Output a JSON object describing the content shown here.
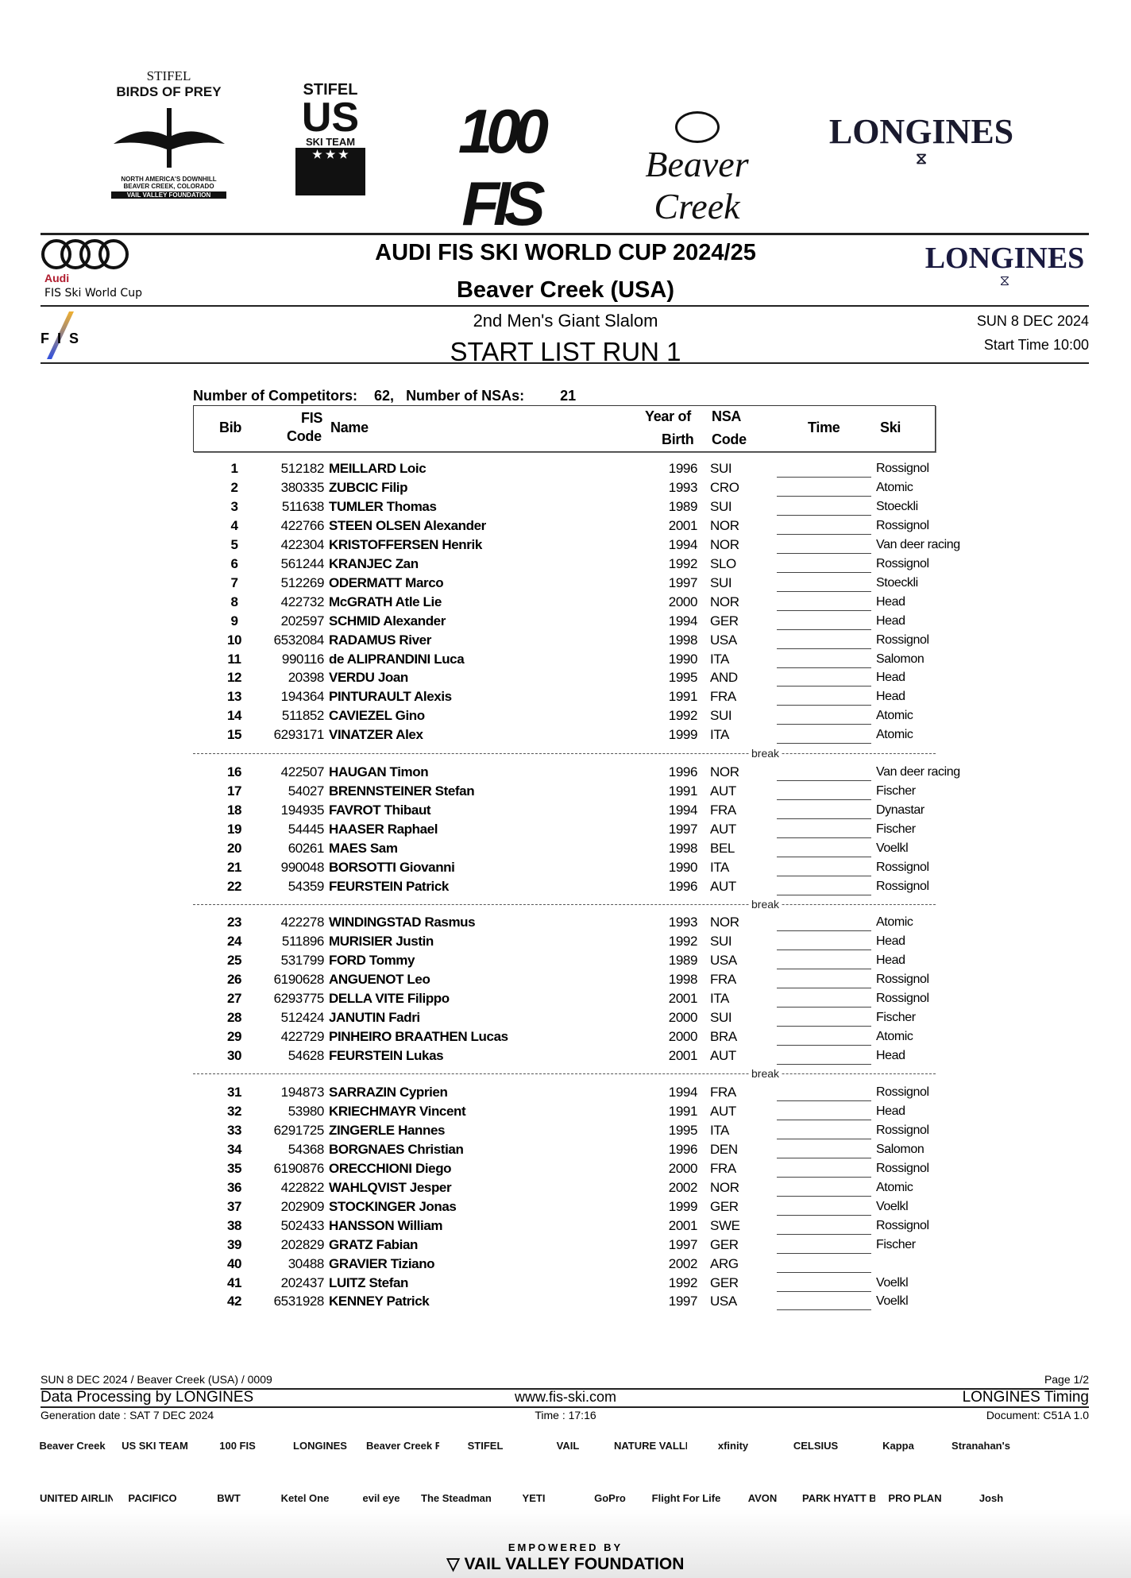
{
  "top_logos": {
    "birds_of_prey": {
      "line1": "STIFEL",
      "line2": "BIRDS OF PREY",
      "line3": "NORTH AMERICA'S DOWNHILL",
      "line4": "BEAVER CREEK, COLORADO",
      "line5": "VAIL VALLEY FOUNDATION"
    },
    "us_ski_team": {
      "line1": "STIFEL",
      "line2": "US",
      "line3": "SKI TEAM"
    },
    "fis_100": {
      "text": "100 FIS"
    },
    "beaver_creek": {
      "text": "Beaver Creek"
    },
    "longines": {
      "text": "LONGINES"
    }
  },
  "header": {
    "audi_brand": "Audi",
    "audi_sub": "FIS Ski World Cup",
    "title": "AUDI FIS SKI WORLD CUP 2024/25",
    "venue": "Beaver Creek (USA)",
    "longines_logo": "LONGINES",
    "fis_logo": "FIS",
    "event": "2nd Men's Giant Slalom",
    "list_title": "START LIST RUN 1",
    "date": "SUN 8 DEC 2024",
    "start_time": "Start Time 10:00"
  },
  "summary": {
    "competitors_label": "Number of Competitors:",
    "competitors_value": "62,",
    "nsas_label": "Number of NSAs:",
    "nsas_value": "21"
  },
  "table": {
    "headers": {
      "bib": "Bib",
      "fis1": "FIS",
      "fis2": "Code",
      "name": "Name",
      "yob1": "Year of",
      "yob2": "Birth",
      "nsa1": "NSA",
      "nsa2": "Code",
      "time": "Time",
      "ski": "Ski"
    },
    "break_label": "break",
    "groups": [
      [
        {
          "bib": "1",
          "fis": "512182",
          "name": "MEILLARD Loic",
          "yob": "1996",
          "nsa": "SUI",
          "ski": "Rossignol"
        },
        {
          "bib": "2",
          "fis": "380335",
          "name": "ZUBCIC Filip",
          "yob": "1993",
          "nsa": "CRO",
          "ski": "Atomic"
        },
        {
          "bib": "3",
          "fis": "511638",
          "name": "TUMLER Thomas",
          "yob": "1989",
          "nsa": "SUI",
          "ski": "Stoeckli"
        },
        {
          "bib": "4",
          "fis": "422766",
          "name": "STEEN OLSEN Alexander",
          "yob": "2001",
          "nsa": "NOR",
          "ski": "Rossignol"
        },
        {
          "bib": "5",
          "fis": "422304",
          "name": "KRISTOFFERSEN Henrik",
          "yob": "1994",
          "nsa": "NOR",
          "ski": "Van deer racing"
        },
        {
          "bib": "6",
          "fis": "561244",
          "name": "KRANJEC Zan",
          "yob": "1992",
          "nsa": "SLO",
          "ski": "Rossignol"
        },
        {
          "bib": "7",
          "fis": "512269",
          "name": "ODERMATT Marco",
          "yob": "1997",
          "nsa": "SUI",
          "ski": "Stoeckli"
        },
        {
          "bib": "8",
          "fis": "422732",
          "name": "McGRATH Atle Lie",
          "yob": "2000",
          "nsa": "NOR",
          "ski": "Head"
        },
        {
          "bib": "9",
          "fis": "202597",
          "name": "SCHMID Alexander",
          "yob": "1994",
          "nsa": "GER",
          "ski": "Head"
        },
        {
          "bib": "10",
          "fis": "6532084",
          "name": "RADAMUS River",
          "yob": "1998",
          "nsa": "USA",
          "ski": "Rossignol"
        },
        {
          "bib": "11",
          "fis": "990116",
          "name": "de ALIPRANDINI Luca",
          "yob": "1990",
          "nsa": "ITA",
          "ski": "Salomon"
        },
        {
          "bib": "12",
          "fis": "20398",
          "name": "VERDU Joan",
          "yob": "1995",
          "nsa": "AND",
          "ski": "Head"
        },
        {
          "bib": "13",
          "fis": "194364",
          "name": "PINTURAULT Alexis",
          "yob": "1991",
          "nsa": "FRA",
          "ski": "Head"
        },
        {
          "bib": "14",
          "fis": "511852",
          "name": "CAVIEZEL Gino",
          "yob": "1992",
          "nsa": "SUI",
          "ski": "Atomic"
        },
        {
          "bib": "15",
          "fis": "6293171",
          "name": "VINATZER Alex",
          "yob": "1999",
          "nsa": "ITA",
          "ski": "Atomic"
        }
      ],
      [
        {
          "bib": "16",
          "fis": "422507",
          "name": "HAUGAN Timon",
          "yob": "1996",
          "nsa": "NOR",
          "ski": "Van deer racing"
        },
        {
          "bib": "17",
          "fis": "54027",
          "name": "BRENNSTEINER Stefan",
          "yob": "1991",
          "nsa": "AUT",
          "ski": "Fischer"
        },
        {
          "bib": "18",
          "fis": "194935",
          "name": "FAVROT Thibaut",
          "yob": "1994",
          "nsa": "FRA",
          "ski": "Dynastar"
        },
        {
          "bib": "19",
          "fis": "54445",
          "name": "HAASER Raphael",
          "yob": "1997",
          "nsa": "AUT",
          "ski": "Fischer"
        },
        {
          "bib": "20",
          "fis": "60261",
          "name": "MAES Sam",
          "yob": "1998",
          "nsa": "BEL",
          "ski": "Voelkl"
        },
        {
          "bib": "21",
          "fis": "990048",
          "name": "BORSOTTI Giovanni",
          "yob": "1990",
          "nsa": "ITA",
          "ski": "Rossignol"
        },
        {
          "bib": "22",
          "fis": "54359",
          "name": "FEURSTEIN Patrick",
          "yob": "1996",
          "nsa": "AUT",
          "ski": "Rossignol"
        }
      ],
      [
        {
          "bib": "23",
          "fis": "422278",
          "name": "WINDINGSTAD Rasmus",
          "yob": "1993",
          "nsa": "NOR",
          "ski": "Atomic"
        },
        {
          "bib": "24",
          "fis": "511896",
          "name": "MURISIER Justin",
          "yob": "1992",
          "nsa": "SUI",
          "ski": "Head"
        },
        {
          "bib": "25",
          "fis": "531799",
          "name": "FORD Tommy",
          "yob": "1989",
          "nsa": "USA",
          "ski": "Head"
        },
        {
          "bib": "26",
          "fis": "6190628",
          "name": "ANGUENOT Leo",
          "yob": "1998",
          "nsa": "FRA",
          "ski": "Rossignol"
        },
        {
          "bib": "27",
          "fis": "6293775",
          "name": "DELLA VITE Filippo",
          "yob": "2001",
          "nsa": "ITA",
          "ski": "Rossignol"
        },
        {
          "bib": "28",
          "fis": "512424",
          "name": "JANUTIN Fadri",
          "yob": "2000",
          "nsa": "SUI",
          "ski": "Fischer"
        },
        {
          "bib": "29",
          "fis": "422729",
          "name": "PINHEIRO BRAATHEN Lucas",
          "yob": "2000",
          "nsa": "BRA",
          "ski": "Atomic"
        },
        {
          "bib": "30",
          "fis": "54628",
          "name": "FEURSTEIN Lukas",
          "yob": "2001",
          "nsa": "AUT",
          "ski": "Head"
        }
      ],
      [
        {
          "bib": "31",
          "fis": "194873",
          "name": "SARRAZIN Cyprien",
          "yob": "1994",
          "nsa": "FRA",
          "ski": "Rossignol"
        },
        {
          "bib": "32",
          "fis": "53980",
          "name": "KRIECHMAYR Vincent",
          "yob": "1991",
          "nsa": "AUT",
          "ski": "Head"
        },
        {
          "bib": "33",
          "fis": "6291725",
          "name": "ZINGERLE Hannes",
          "yob": "1995",
          "nsa": "ITA",
          "ski": "Rossignol"
        },
        {
          "bib": "34",
          "fis": "54368",
          "name": "BORGNAES Christian",
          "yob": "1996",
          "nsa": "DEN",
          "ski": "Salomon"
        },
        {
          "bib": "35",
          "fis": "6190876",
          "name": "ORECCHIONI Diego",
          "yob": "2000",
          "nsa": "FRA",
          "ski": "Rossignol"
        },
        {
          "bib": "36",
          "fis": "422822",
          "name": "WAHLQVIST Jesper",
          "yob": "2002",
          "nsa": "NOR",
          "ski": "Atomic"
        },
        {
          "bib": "37",
          "fis": "202909",
          "name": "STOCKINGER Jonas",
          "yob": "1999",
          "nsa": "GER",
          "ski": "Voelkl"
        },
        {
          "bib": "38",
          "fis": "502433",
          "name": "HANSSON William",
          "yob": "2001",
          "nsa": "SWE",
          "ski": "Rossignol"
        },
        {
          "bib": "39",
          "fis": "202829",
          "name": "GRATZ Fabian",
          "yob": "1997",
          "nsa": "GER",
          "ski": "Fischer"
        },
        {
          "bib": "40",
          "fis": "30488",
          "name": "GRAVIER Tiziano",
          "yob": "2002",
          "nsa": "ARG",
          "ski": ""
        },
        {
          "bib": "41",
          "fis": "202437",
          "name": "LUITZ Stefan",
          "yob": "1992",
          "nsa": "GER",
          "ski": "Voelkl"
        },
        {
          "bib": "42",
          "fis": "6531928",
          "name": "KENNEY Patrick",
          "yob": "1997",
          "nsa": "USA",
          "ski": "Voelkl"
        }
      ]
    ]
  },
  "footer": {
    "doc_ref": "SUN 8 DEC 2024 / Beaver Creek (USA) / 0009",
    "page": "Page 1/2",
    "data_processing": "Data Processing by LONGINES",
    "website": "www.fis-ski.com",
    "timing": "LONGINES Timing",
    "generation": "Generation date : SAT 7 DEC 2024",
    "time": "Time : 17:16",
    "document": "Document: C51A 1.0"
  },
  "sponsors": {
    "row1": [
      "Beaver Creek",
      "US SKI TEAM",
      "100 FIS",
      "LONGINES",
      "Beaver Creek Resort Company",
      "STIFEL",
      "VAIL",
      "NATURE VALLEY",
      "xfinity",
      "CELSIUS",
      "Kappa",
      "Stranahan's"
    ],
    "row2": [
      "UNITED AIRLINES",
      "PACIFICO",
      "BWT",
      "Ketel One",
      "evil eye",
      "The Steadman Clinic",
      "YETI",
      "GoPro",
      "Flight For Life",
      "AVON",
      "PARK HYATT BEAVER CREEK",
      "PRO PLAN",
      "Josh"
    ],
    "empowered_by": "EMPOWERED BY",
    "foundation": "VAIL VALLEY FOUNDATION"
  }
}
